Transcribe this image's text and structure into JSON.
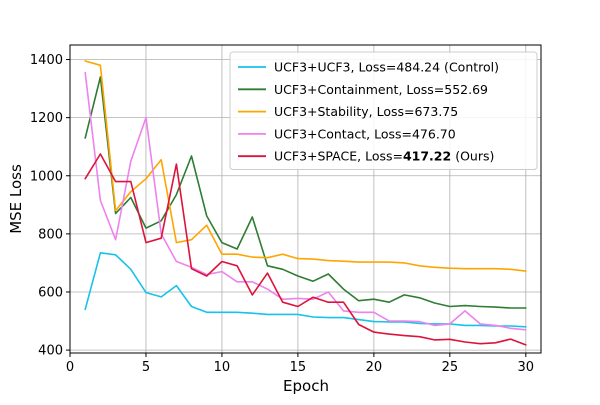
{
  "chart_data": {
    "type": "line",
    "title": "",
    "xlabel": "Epoch",
    "ylabel": "MSE Loss",
    "xlim": [
      0,
      31
    ],
    "ylim": [
      390,
      1450
    ],
    "xticks": [
      0,
      5,
      10,
      15,
      20,
      25,
      30
    ],
    "yticks": [
      400,
      600,
      800,
      1000,
      1200,
      1400
    ],
    "grid": true,
    "legend_position": "top-right",
    "x": [
      1,
      2,
      3,
      4,
      5,
      6,
      7,
      8,
      9,
      10,
      11,
      12,
      13,
      14,
      15,
      16,
      17,
      18,
      19,
      20,
      21,
      22,
      23,
      24,
      25,
      26,
      27,
      28,
      29,
      30
    ],
    "series": [
      {
        "name": "UCF3+UCF3, Loss=484.24 (Control)",
        "name_prefix": "UCF3+UCF3, Loss=484.24 (Control)",
        "name_bold": "",
        "name_suffix": "",
        "color": "#17c3e8",
        "values": [
          540,
          735,
          728,
          678,
          598,
          583,
          622,
          550,
          530,
          530,
          530,
          527,
          523,
          523,
          523,
          514,
          512,
          512,
          505,
          498,
          497,
          497,
          492,
          490,
          490,
          485,
          485,
          483,
          483,
          480
        ]
      },
      {
        "name": "UCF3+Containment, Loss=552.69",
        "name_prefix": "UCF3+Containment, Loss=552.69",
        "name_bold": "",
        "name_suffix": "",
        "color": "#2e7d32",
        "values": [
          1130,
          1340,
          870,
          925,
          820,
          845,
          935,
          1068,
          862,
          770,
          748,
          858,
          690,
          678,
          655,
          637,
          662,
          610,
          570,
          575,
          565,
          590,
          580,
          562,
          550,
          553,
          550,
          548,
          545,
          545
        ]
      },
      {
        "name": "UCF3+Stability, Loss=673.75",
        "name_prefix": "UCF3+Stability, Loss=673.75",
        "name_bold": "",
        "name_suffix": "",
        "color": "#ffa500",
        "values": [
          1395,
          1380,
          880,
          945,
          990,
          1055,
          770,
          780,
          830,
          730,
          730,
          720,
          718,
          730,
          715,
          713,
          708,
          706,
          703,
          703,
          703,
          700,
          690,
          685,
          682,
          680,
          680,
          680,
          678,
          672
        ]
      },
      {
        "name": "UCF3+Contact, Loss=476.70",
        "name_prefix": "UCF3+Contact, Loss=476.70",
        "name_bold": "",
        "name_suffix": "",
        "color": "#ee82ee",
        "values": [
          1355,
          915,
          780,
          1050,
          1200,
          800,
          705,
          685,
          660,
          670,
          635,
          635,
          610,
          575,
          578,
          575,
          600,
          535,
          530,
          530,
          500,
          500,
          498,
          485,
          490,
          535,
          490,
          485,
          475,
          470
        ]
      },
      {
        "name": "UCF3+SPACE, Loss=417.22 (Ours)",
        "name_prefix": "UCF3+SPACE, Loss=",
        "name_bold": "417.22",
        "name_suffix": " (Ours)",
        "color": "#dc143c",
        "values": [
          990,
          1075,
          980,
          980,
          770,
          785,
          1040,
          680,
          655,
          705,
          690,
          590,
          665,
          565,
          550,
          582,
          565,
          565,
          488,
          462,
          455,
          450,
          446,
          435,
          437,
          428,
          422,
          425,
          438,
          418
        ]
      }
    ]
  }
}
